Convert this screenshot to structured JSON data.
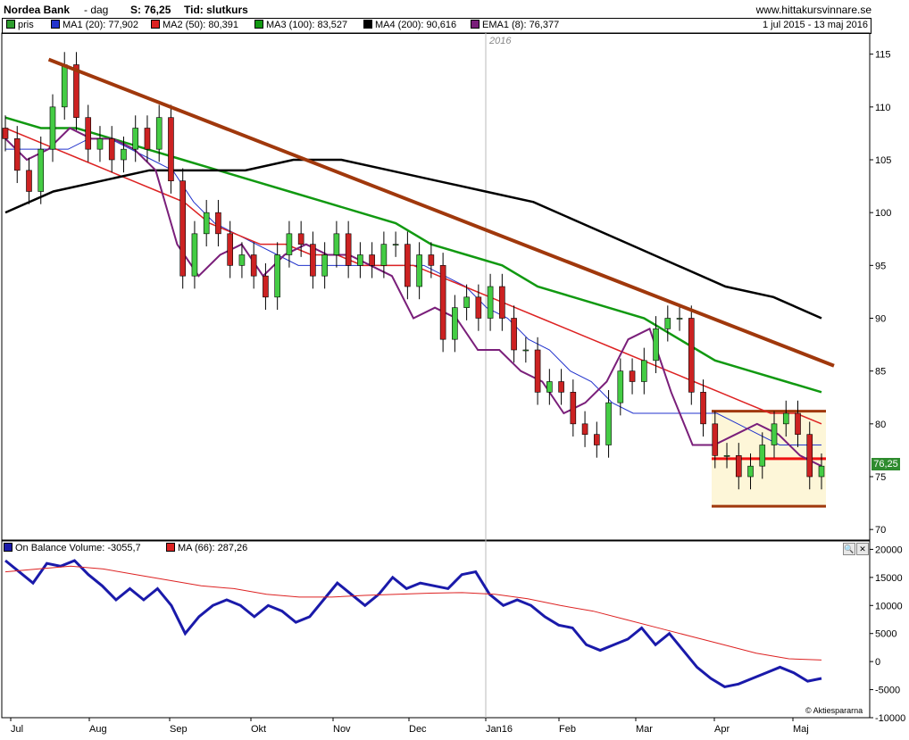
{
  "header": {
    "title": "Nordea Bank",
    "interval": "- dag",
    "last_price": "S: 76,25",
    "time_type": "Tid: slutkurs",
    "site": "www.hittakursvinnare.se"
  },
  "legend": {
    "items": [
      {
        "label": "pris",
        "color": "#2e9e2e"
      },
      {
        "label": "MA1 (20): 77,902",
        "color": "#2233cc"
      },
      {
        "label": "MA2 (50): 80,391",
        "color": "#dd2222"
      },
      {
        "label": "MA3 (100): 83,527",
        "color": "#119911"
      },
      {
        "label": "MA4 (200): 90,616",
        "color": "#000000"
      },
      {
        "label": "EMA1 (8): 76,377",
        "color": "#7a1f7a"
      }
    ],
    "date_range": "1 jul 2015 - 13 maj 2016"
  },
  "price_box": "76,25",
  "year_marker": "2016",
  "obv_legend": {
    "items": [
      {
        "label": "On Balance Volume: -3055,7",
        "color": "#1a1aaa"
      },
      {
        "label": "MA (66): 287,26",
        "color": "#dd2222"
      }
    ]
  },
  "credit": "Aktiespararna",
  "tools": [
    "search-icon",
    "close-icon"
  ],
  "chart_data": [
    {
      "type": "candlestick",
      "title": "Nordea Bank",
      "x_labels": [
        "Jul",
        "Aug",
        "Sep",
        "Okt",
        "Nov",
        "Dec",
        "Jan16",
        "Feb",
        "Mar",
        "Apr",
        "Maj"
      ],
      "y_ticks": [
        70,
        75,
        80,
        85,
        90,
        95,
        100,
        105,
        110,
        115
      ],
      "ylim": [
        69,
        117
      ],
      "grid": false,
      "series": [
        {
          "name": "pris",
          "values": [
            107,
            104,
            102,
            106,
            110,
            114,
            109,
            106,
            107,
            105,
            106,
            108,
            106,
            109,
            103,
            94,
            98,
            100,
            98,
            95,
            96,
            94,
            92,
            96,
            98,
            97,
            94,
            96,
            98,
            95,
            96,
            95,
            97,
            97,
            93,
            96,
            95,
            88,
            91,
            92,
            90,
            93,
            90,
            87,
            87,
            83,
            84,
            83,
            80,
            79,
            78,
            82,
            85,
            84,
            86,
            89,
            90,
            90,
            83,
            80,
            77,
            77,
            75,
            76,
            78,
            80,
            81,
            79,
            75,
            76
          ]
        },
        {
          "name": "MA1 (20)",
          "values": [
            106,
            106,
            106,
            106,
            107,
            107,
            106,
            105,
            104,
            101,
            99,
            98,
            97,
            96,
            95,
            95,
            95,
            95,
            95,
            95,
            95,
            94,
            93,
            91,
            90,
            88,
            87,
            85,
            84,
            82,
            81,
            81,
            81,
            81,
            81,
            80,
            79,
            78,
            78,
            78
          ]
        },
        {
          "name": "MA2 (50)",
          "values": [
            108,
            107,
            106,
            105,
            104,
            103,
            102,
            101,
            99,
            98,
            97,
            97,
            96,
            96,
            95,
            95,
            95,
            94,
            93,
            92,
            91,
            90,
            89,
            88,
            87,
            86,
            85,
            84,
            83,
            82,
            81,
            81,
            80
          ]
        },
        {
          "name": "MA3 (100)",
          "values": [
            109,
            108,
            108,
            107,
            106,
            105,
            104,
            103,
            102,
            101,
            100,
            99,
            97,
            96,
            95,
            93,
            92,
            91,
            90,
            88,
            86,
            85,
            84,
            83
          ]
        },
        {
          "name": "MA4 (200)",
          "values": [
            100,
            102,
            103,
            104,
            104,
            104,
            105,
            105,
            104,
            103,
            102,
            101,
            99,
            97,
            95,
            93,
            92,
            90
          ]
        },
        {
          "name": "EMA1 (8)",
          "values": [
            107,
            105,
            106,
            108,
            107,
            107,
            106,
            104,
            97,
            94,
            96,
            97,
            94,
            96,
            97,
            96,
            96,
            95,
            94,
            90,
            91,
            90,
            87,
            87,
            85,
            84,
            81,
            82,
            84,
            88,
            89,
            83,
            78,
            78,
            79,
            80,
            79,
            77,
            76
          ]
        }
      ],
      "annotations": [
        {
          "type": "trendline",
          "from": [
            0.02,
            114.5
          ],
          "to": [
            0.99,
            85.5
          ],
          "color": "#a0380c"
        },
        {
          "type": "range_box",
          "top": 81.2,
          "bottom": 72.2,
          "mid": 76.7
        }
      ]
    },
    {
      "type": "line",
      "title": "On Balance Volume",
      "y_ticks": [
        -10000,
        -5000,
        0,
        5000,
        10000,
        15000,
        20000
      ],
      "ylim": [
        -10000,
        21500
      ],
      "grid": false,
      "series": [
        {
          "name": "On Balance Volume",
          "values": [
            18000,
            16000,
            14000,
            17500,
            17000,
            18000,
            15500,
            13500,
            11000,
            13000,
            11000,
            13000,
            10000,
            5000,
            8000,
            10000,
            11000,
            10000,
            8000,
            10000,
            9000,
            7000,
            8000,
            11000,
            14000,
            12000,
            10000,
            12000,
            15000,
            13000,
            14000,
            13500,
            13000,
            15500,
            16000,
            12000,
            10000,
            11000,
            10000,
            8000,
            6500,
            6000,
            3000,
            2000,
            3000,
            4000,
            6000,
            3000,
            5000,
            2000,
            -1000,
            -3000,
            -4500,
            -4000,
            -3000,
            -2000,
            -1000,
            -2000,
            -3500,
            -3000
          ]
        },
        {
          "name": "MA (66)",
          "values": [
            16000,
            16500,
            17000,
            16500,
            15500,
            14500,
            13500,
            13000,
            12000,
            11500,
            11500,
            11800,
            12000,
            12200,
            12300,
            12000,
            11200,
            10000,
            9000,
            7500,
            6000,
            4500,
            3000,
            1500,
            500,
            287
          ]
        }
      ]
    }
  ]
}
